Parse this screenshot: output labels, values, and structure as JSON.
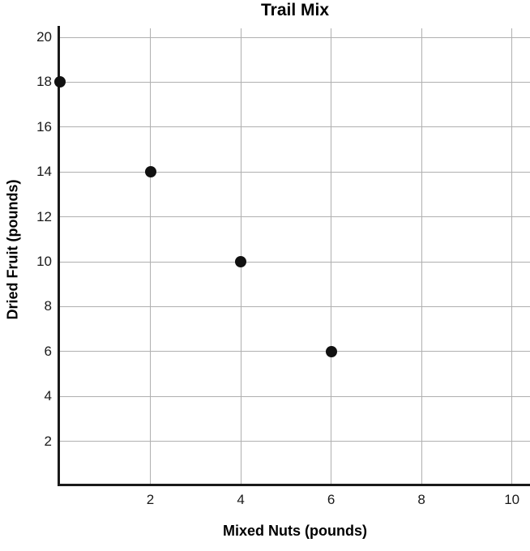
{
  "chart_data": {
    "type": "scatter",
    "title": "Trail Mix",
    "xlabel": "Mixed Nuts (pounds)",
    "ylabel": "Dried Fruit (pounds)",
    "points": [
      [
        0,
        18
      ],
      [
        2,
        14
      ],
      [
        4,
        10
      ],
      [
        6,
        6
      ]
    ],
    "x_ticks": [
      2,
      4,
      6,
      8,
      10
    ],
    "y_ticks": [
      2,
      4,
      6,
      8,
      10,
      12,
      14,
      16,
      18,
      20
    ],
    "xlim": [
      0,
      10.4
    ],
    "ylim": [
      0,
      20.4
    ],
    "grid": true,
    "legend": "none",
    "colors": {
      "point": "#111111",
      "grid": "#b0b0b0",
      "axis": "#1a1a1a",
      "text": "#1a1a1a",
      "background": "#ffffff"
    }
  }
}
